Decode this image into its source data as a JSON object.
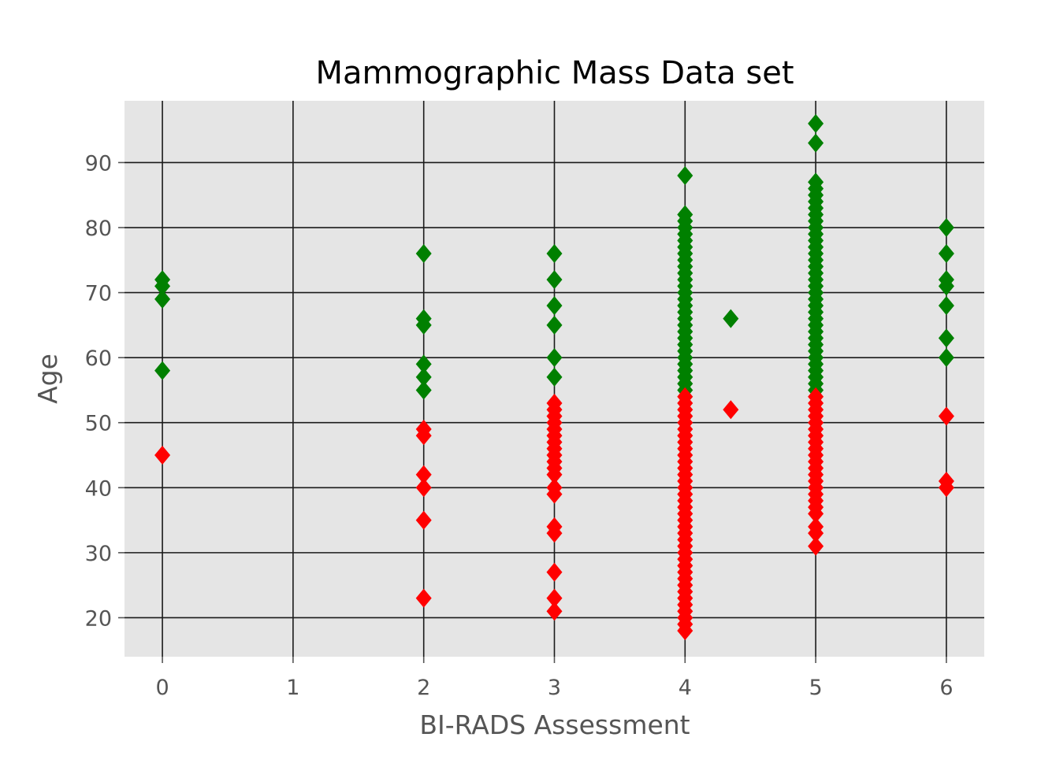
{
  "colors": {
    "background": "#ffffff",
    "plot_background": "#e5e5e5",
    "grid": "#1a1a1a",
    "benign": "#008000",
    "malignant": "#ff0000"
  },
  "chart_data": {
    "type": "scatter",
    "title": "Mammographic Mass Data set",
    "xlabel": "BI-RADS Assessment",
    "ylabel": "Age",
    "xlim": [
      -0.29,
      6.29
    ],
    "ylim": [
      14.0,
      99.5
    ],
    "xticks": [
      "0",
      "1",
      "2",
      "3",
      "4",
      "5",
      "6"
    ],
    "yticks": [
      "20",
      "30",
      "40",
      "50",
      "60",
      "70",
      "80",
      "90"
    ],
    "grid": true,
    "marker": "diamond",
    "series": [
      {
        "color": "#008000",
        "points": [
          [
            0,
            72
          ],
          [
            0,
            71
          ],
          [
            0,
            69
          ],
          [
            0,
            58
          ],
          [
            2,
            76
          ],
          [
            2,
            66
          ],
          [
            2,
            65
          ],
          [
            2,
            59
          ],
          [
            2,
            57
          ],
          [
            2,
            55
          ],
          [
            3,
            76
          ],
          [
            3,
            72
          ],
          [
            3,
            68
          ],
          [
            3,
            65
          ],
          [
            3,
            60
          ],
          [
            3,
            57
          ],
          [
            4,
            88
          ],
          [
            4,
            82
          ],
          [
            4,
            81
          ],
          [
            4,
            80
          ],
          [
            4,
            79
          ],
          [
            4,
            78
          ],
          [
            4,
            77
          ],
          [
            4,
            76
          ],
          [
            4,
            75
          ],
          [
            4,
            74
          ],
          [
            4,
            73
          ],
          [
            4,
            72
          ],
          [
            4,
            71
          ],
          [
            4,
            70
          ],
          [
            4,
            69
          ],
          [
            4,
            68
          ],
          [
            4,
            67
          ],
          [
            4,
            66
          ],
          [
            4,
            65
          ],
          [
            4,
            64
          ],
          [
            4,
            63
          ],
          [
            4,
            62
          ],
          [
            4,
            61
          ],
          [
            4,
            60
          ],
          [
            4,
            59
          ],
          [
            4,
            58
          ],
          [
            4,
            57
          ],
          [
            4,
            56
          ],
          [
            4,
            55
          ],
          [
            4.35,
            66
          ],
          [
            5,
            96
          ],
          [
            5,
            93
          ],
          [
            5,
            87
          ],
          [
            5,
            86
          ],
          [
            5,
            85
          ],
          [
            5,
            84
          ],
          [
            5,
            83
          ],
          [
            5,
            82
          ],
          [
            5,
            81
          ],
          [
            5,
            80
          ],
          [
            5,
            79
          ],
          [
            5,
            78
          ],
          [
            5,
            77
          ],
          [
            5,
            76
          ],
          [
            5,
            75
          ],
          [
            5,
            74
          ],
          [
            5,
            73
          ],
          [
            5,
            72
          ],
          [
            5,
            71
          ],
          [
            5,
            70
          ],
          [
            5,
            69
          ],
          [
            5,
            68
          ],
          [
            5,
            67
          ],
          [
            5,
            66
          ],
          [
            5,
            65
          ],
          [
            5,
            64
          ],
          [
            5,
            63
          ],
          [
            5,
            62
          ],
          [
            5,
            61
          ],
          [
            5,
            60
          ],
          [
            5,
            59
          ],
          [
            5,
            58
          ],
          [
            5,
            57
          ],
          [
            5,
            56
          ],
          [
            5,
            55
          ],
          [
            6,
            80
          ],
          [
            6,
            76
          ],
          [
            6,
            72
          ],
          [
            6,
            71
          ],
          [
            6,
            68
          ],
          [
            6,
            63
          ],
          [
            6,
            60
          ]
        ]
      },
      {
        "color": "#ff0000",
        "points": [
          [
            0,
            45
          ],
          [
            2,
            49
          ],
          [
            2,
            48
          ],
          [
            2,
            42
          ],
          [
            2,
            40
          ],
          [
            2,
            35
          ],
          [
            2,
            23
          ],
          [
            3,
            53
          ],
          [
            3,
            52
          ],
          [
            3,
            51
          ],
          [
            3,
            50
          ],
          [
            3,
            49
          ],
          [
            3,
            48
          ],
          [
            3,
            47
          ],
          [
            3,
            46
          ],
          [
            3,
            45
          ],
          [
            3,
            44
          ],
          [
            3,
            43
          ],
          [
            3,
            42
          ],
          [
            3,
            40
          ],
          [
            3,
            39
          ],
          [
            3,
            34
          ],
          [
            3,
            33
          ],
          [
            3,
            27
          ],
          [
            3,
            23
          ],
          [
            3,
            21
          ],
          [
            4,
            54
          ],
          [
            4,
            53
          ],
          [
            4,
            52
          ],
          [
            4,
            51
          ],
          [
            4,
            50
          ],
          [
            4,
            49
          ],
          [
            4,
            48
          ],
          [
            4,
            47
          ],
          [
            4,
            46
          ],
          [
            4,
            45
          ],
          [
            4,
            44
          ],
          [
            4,
            43
          ],
          [
            4,
            42
          ],
          [
            4,
            41
          ],
          [
            4,
            40
          ],
          [
            4,
            39
          ],
          [
            4,
            38
          ],
          [
            4,
            37
          ],
          [
            4,
            36
          ],
          [
            4,
            35
          ],
          [
            4,
            34
          ],
          [
            4,
            33
          ],
          [
            4,
            32
          ],
          [
            4,
            31
          ],
          [
            4,
            30
          ],
          [
            4,
            29
          ],
          [
            4,
            28
          ],
          [
            4,
            27
          ],
          [
            4,
            26
          ],
          [
            4,
            25
          ],
          [
            4,
            24
          ],
          [
            4,
            23
          ],
          [
            4,
            22
          ],
          [
            4,
            21
          ],
          [
            4,
            20
          ],
          [
            4,
            19
          ],
          [
            4,
            18
          ],
          [
            4.35,
            52
          ],
          [
            5,
            54
          ],
          [
            5,
            53
          ],
          [
            5,
            52
          ],
          [
            5,
            51
          ],
          [
            5,
            50
          ],
          [
            5,
            49
          ],
          [
            5,
            48
          ],
          [
            5,
            47
          ],
          [
            5,
            46
          ],
          [
            5,
            45
          ],
          [
            5,
            44
          ],
          [
            5,
            43
          ],
          [
            5,
            42
          ],
          [
            5,
            41
          ],
          [
            5,
            40
          ],
          [
            5,
            39
          ],
          [
            5,
            38
          ],
          [
            5,
            37
          ],
          [
            5,
            36
          ],
          [
            5,
            34
          ],
          [
            5,
            33
          ],
          [
            5,
            31
          ],
          [
            6,
            51
          ],
          [
            6,
            41
          ],
          [
            6,
            40
          ]
        ]
      }
    ]
  }
}
